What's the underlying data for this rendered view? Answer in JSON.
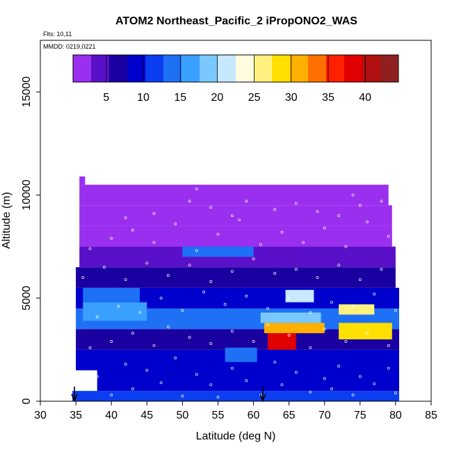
{
  "chart_data": {
    "type": "heatmap",
    "title": "ATOM2 Northeast_Pacific_2 iPropONO2_WAS",
    "flights_text": "Flts: 10,11",
    "mmdd_text": "MMDD: 0219,0221",
    "xlabel": "Latitude (deg N)",
    "ylabel": "Altitude (m)",
    "xlim": [
      30,
      85
    ],
    "ylim": [
      0,
      17500
    ],
    "x_ticks": [
      "30",
      "35",
      "40",
      "45",
      "50",
      "55",
      "60",
      "65",
      "70",
      "75",
      "80",
      "85"
    ],
    "y_ticks": [
      "0",
      "5000",
      "10000",
      "15000"
    ],
    "colorbar": {
      "min": 0.5,
      "max": 44.5,
      "tick_labels": [
        "5",
        "10",
        "15",
        "20",
        "25",
        "30",
        "35",
        "40"
      ],
      "colors": [
        "#9a2ff0",
        "#5a10c8",
        "#1a00a0",
        "#0000cc",
        "#0a3ef0",
        "#1e70f5",
        "#3aa0ff",
        "#7ac8ff",
        "#c8e8ff",
        "#fffce0",
        "#fff080",
        "#ffe000",
        "#ffb000",
        "#ff7000",
        "#ff2000",
        "#e00000",
        "#b01010",
        "#902020"
      ]
    },
    "latitude_bands": [
      {
        "lat_min": 34.5,
        "lat_max": 80.5,
        "alt_min": 0,
        "alt_max": 500,
        "value": 11
      },
      {
        "lat_min": 38.0,
        "lat_max": 80.5,
        "alt_min": 500,
        "alt_max": 1500,
        "value": 9
      },
      {
        "lat_min": 35.0,
        "lat_max": 80.5,
        "alt_min": 1500,
        "alt_max": 2500,
        "value": 10
      },
      {
        "lat_min": 35.0,
        "lat_max": 80.5,
        "alt_min": 2500,
        "alt_max": 3500,
        "value": 7
      },
      {
        "lat_min": 35.0,
        "lat_max": 80.5,
        "alt_min": 3500,
        "alt_max": 4500,
        "value": 14
      },
      {
        "lat_min": 35.0,
        "lat_max": 80.5,
        "alt_min": 4500,
        "alt_max": 5500,
        "value": 10
      },
      {
        "lat_min": 35.0,
        "lat_max": 80.0,
        "alt_min": 5500,
        "alt_max": 6500,
        "value": 6
      },
      {
        "lat_min": 35.5,
        "lat_max": 80.0,
        "alt_min": 6500,
        "alt_max": 7500,
        "value": 3
      },
      {
        "lat_min": 35.5,
        "lat_max": 79.5,
        "alt_min": 7500,
        "alt_max": 8500,
        "value": 2
      },
      {
        "lat_min": 35.5,
        "lat_max": 79.5,
        "alt_min": 8500,
        "alt_max": 9500,
        "value": 1
      },
      {
        "lat_min": 35.5,
        "lat_max": 79.0,
        "alt_min": 9500,
        "alt_max": 10500,
        "value": 1
      },
      {
        "lat_min": 35.5,
        "lat_max": 36.3,
        "alt_min": 10500,
        "alt_max": 10900,
        "value": 1
      }
    ],
    "hotspots": [
      {
        "lat_min": 62.0,
        "lat_max": 66.0,
        "alt_min": 2500,
        "alt_max": 3300,
        "value": 38
      },
      {
        "lat_min": 61.5,
        "lat_max": 70.0,
        "alt_min": 3300,
        "alt_max": 3800,
        "value": 30
      },
      {
        "lat_min": 72.0,
        "lat_max": 79.5,
        "alt_min": 3000,
        "alt_max": 3800,
        "value": 28
      },
      {
        "lat_min": 61.0,
        "lat_max": 69.5,
        "alt_min": 3800,
        "alt_max": 4300,
        "value": 18
      },
      {
        "lat_min": 72.0,
        "lat_max": 77.0,
        "alt_min": 4200,
        "alt_max": 4700,
        "value": 26
      },
      {
        "lat_min": 64.5,
        "lat_max": 68.5,
        "alt_min": 4800,
        "alt_max": 5400,
        "value": 22
      },
      {
        "lat_min": 36.0,
        "lat_max": 45.0,
        "alt_min": 3900,
        "alt_max": 4800,
        "value": 17
      },
      {
        "lat_min": 36.0,
        "lat_max": 44.0,
        "alt_min": 4800,
        "alt_max": 5500,
        "value": 14
      },
      {
        "lat_min": 50.0,
        "lat_max": 60.0,
        "alt_min": 7000,
        "alt_max": 7500,
        "value": 13
      },
      {
        "lat_min": 56.0,
        "lat_max": 60.5,
        "alt_min": 1900,
        "alt_max": 2600,
        "value": 14
      }
    ],
    "sample_points": [
      [
        36,
        700
      ],
      [
        38,
        1200
      ],
      [
        40,
        300
      ],
      [
        42,
        1800
      ],
      [
        43,
        600
      ],
      [
        45,
        1500
      ],
      [
        47,
        900
      ],
      [
        49,
        2100
      ],
      [
        50,
        250
      ],
      [
        52,
        1300
      ],
      [
        54,
        800
      ],
      [
        55,
        200
      ],
      [
        57,
        1600
      ],
      [
        59,
        1000
      ],
      [
        61,
        300
      ],
      [
        63,
        1900
      ],
      [
        64,
        800
      ],
      [
        66,
        1400
      ],
      [
        68,
        450
      ],
      [
        70,
        1100
      ],
      [
        71,
        600
      ],
      [
        72,
        1700
      ],
      [
        74,
        300
      ],
      [
        75,
        1200
      ],
      [
        77,
        850
      ],
      [
        79,
        1600
      ],
      [
        80,
        400
      ],
      [
        37,
        2600
      ],
      [
        40,
        2900
      ],
      [
        43,
        3300
      ],
      [
        46,
        2700
      ],
      [
        48,
        3600
      ],
      [
        51,
        3100
      ],
      [
        54,
        2800
      ],
      [
        57,
        3400
      ],
      [
        60,
        2900
      ],
      [
        62,
        3700
      ],
      [
        65,
        3200
      ],
      [
        68,
        2600
      ],
      [
        70,
        3500
      ],
      [
        73,
        2900
      ],
      [
        76,
        3300
      ],
      [
        79,
        2700
      ],
      [
        38,
        4100
      ],
      [
        41,
        4600
      ],
      [
        44,
        4300
      ],
      [
        47,
        5000
      ],
      [
        50,
        4400
      ],
      [
        53,
        5300
      ],
      [
        56,
        4700
      ],
      [
        59,
        5100
      ],
      [
        62,
        4500
      ],
      [
        65,
        5000
      ],
      [
        68,
        4300
      ],
      [
        71,
        4800
      ],
      [
        74,
        4600
      ],
      [
        77,
        5200
      ],
      [
        80,
        4400
      ],
      [
        36,
        6000
      ],
      [
        39,
        6500
      ],
      [
        42,
        5900
      ],
      [
        45,
        6700
      ],
      [
        48,
        6100
      ],
      [
        51,
        6600
      ],
      [
        54,
        5800
      ],
      [
        57,
        6300
      ],
      [
        60,
        6900
      ],
      [
        63,
        6200
      ],
      [
        66,
        6400
      ],
      [
        69,
        6000
      ],
      [
        72,
        6600
      ],
      [
        75,
        5900
      ],
      [
        78,
        6400
      ],
      [
        37,
        7400
      ],
      [
        40,
        7900
      ],
      [
        43,
        8300
      ],
      [
        46,
        7700
      ],
      [
        49,
        8600
      ],
      [
        52,
        7300
      ],
      [
        55,
        8100
      ],
      [
        58,
        8800
      ],
      [
        61,
        7600
      ],
      [
        64,
        8200
      ],
      [
        67,
        7700
      ],
      [
        70,
        8400
      ],
      [
        73,
        7500
      ],
      [
        76,
        8700
      ],
      [
        79,
        8000
      ],
      [
        42,
        8900
      ],
      [
        46,
        9100
      ],
      [
        51,
        9700
      ],
      [
        54,
        9400
      ],
      [
        57,
        9000
      ],
      [
        59,
        9700
      ],
      [
        63,
        9300
      ],
      [
        66,
        9600
      ],
      [
        69,
        9200
      ],
      [
        72,
        9000
      ],
      [
        75,
        9500
      ],
      [
        78,
        9700
      ],
      [
        52,
        10300
      ],
      [
        74,
        10000
      ]
    ],
    "arrows_lat": [
      34.8,
      61.3
    ]
  }
}
